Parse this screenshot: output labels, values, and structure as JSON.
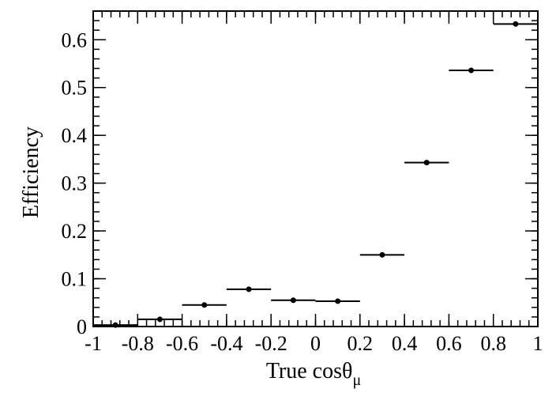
{
  "chart_data": {
    "type": "scatter",
    "title": "",
    "xlabel_main": "True cos",
    "xlabel_theta": "θ",
    "xlabel_sub": "μ",
    "ylabel": "Efficiency",
    "xlim": [
      -1,
      1
    ],
    "ylim": [
      0,
      0.66
    ],
    "x_ticks": [
      "-1",
      "-0.8",
      "-0.6",
      "-0.4",
      "-0.2",
      "0",
      "0.2",
      "0.4",
      "0.6",
      "0.8",
      "1"
    ],
    "x_tick_values": [
      -1,
      -0.8,
      -0.6,
      -0.4,
      -0.2,
      0,
      0.2,
      0.4,
      0.6,
      0.8,
      1
    ],
    "y_ticks": [
      "0",
      "0.1",
      "0.2",
      "0.3",
      "0.4",
      "0.5",
      "0.6"
    ],
    "y_tick_values": [
      0,
      0.1,
      0.2,
      0.3,
      0.4,
      0.5,
      0.6
    ],
    "grid": false,
    "marker_color": "#000000",
    "points": [
      {
        "x": -0.9,
        "x_low": -1.0,
        "x_high": -0.8,
        "y": 0.003
      },
      {
        "x": -0.7,
        "x_low": -0.8,
        "x_high": -0.6,
        "y": 0.015
      },
      {
        "x": -0.5,
        "x_low": -0.6,
        "x_high": -0.4,
        "y": 0.045
      },
      {
        "x": -0.3,
        "x_low": -0.4,
        "x_high": -0.2,
        "y": 0.078
      },
      {
        "x": -0.1,
        "x_low": -0.2,
        "x_high": 0.0,
        "y": 0.055
      },
      {
        "x": 0.1,
        "x_low": 0.0,
        "x_high": 0.2,
        "y": 0.053
      },
      {
        "x": 0.3,
        "x_low": 0.2,
        "x_high": 0.4,
        "y": 0.15
      },
      {
        "x": 0.5,
        "x_low": 0.4,
        "x_high": 0.6,
        "y": 0.343
      },
      {
        "x": 0.7,
        "x_low": 0.6,
        "x_high": 0.8,
        "y": 0.536
      },
      {
        "x": 0.9,
        "x_low": 0.8,
        "x_high": 1.0,
        "y": 0.633
      }
    ]
  }
}
